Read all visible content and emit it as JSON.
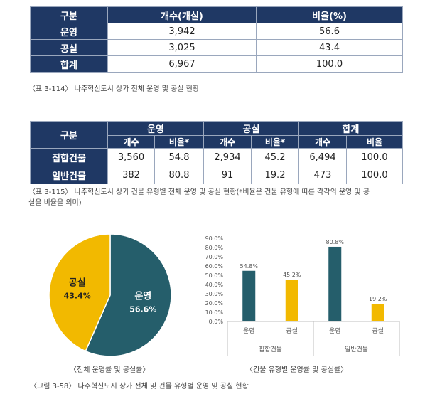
{
  "table1": {
    "headers": [
      "구분",
      "개수(개실)",
      "비율(%)"
    ],
    "rows": [
      {
        "label": "운영",
        "count": "3,942",
        "ratio": "56.6"
      },
      {
        "label": "공실",
        "count": "3,025",
        "ratio": "43.4"
      },
      {
        "label": "합계",
        "count": "6,967",
        "ratio": "100.0"
      }
    ],
    "caption": "〈표 3-114〉 나주혁신도시 상가 전체 운영 및 공실 현황"
  },
  "table2": {
    "corner": "구분",
    "groups": [
      "운영",
      "공실",
      "합계"
    ],
    "subheaders": [
      "개수",
      "비율*",
      "개수",
      "비율*",
      "개수",
      "비율"
    ],
    "rows": [
      {
        "label": "집합건물",
        "cells": [
          "3,560",
          "54.8",
          "2,934",
          "45.2",
          "6,494",
          "100.0"
        ]
      },
      {
        "label": "일반건물",
        "cells": [
          "382",
          "80.8",
          "91",
          "19.2",
          "473",
          "100.0"
        ]
      }
    ],
    "caption_line1": "〈표 3-115〉 나주혁신도시 상가 건물 유형별 전체 운영 및 공실 현황(*비율은 건물 유형에 따른 각각의 운영 및 공",
    "caption_line2": "실을 비율을 의미)"
  },
  "pie": {
    "caption": "〈전체 운영률 및 공실률〉"
  },
  "bar": {
    "caption": "〈건물 유형별 운영률 및 공실률〉"
  },
  "figure_caption": "〈그림 3-58〉 나주혁신도시 상가 전체 및 건물 유형별 운영 및 공실 현황",
  "colors": {
    "operating": "#255e6b",
    "vacant": "#f2b900",
    "header": "#1f3864"
  },
  "chart_data": [
    {
      "type": "pie",
      "categories": [
        "운영",
        "공실"
      ],
      "values": [
        56.6,
        43.4
      ],
      "labels": [
        "56.6%",
        "43.4%"
      ]
    },
    {
      "type": "bar",
      "groups": [
        "집합건물",
        "일반건물"
      ],
      "categories": [
        "운영",
        "공실",
        "운영",
        "공실"
      ],
      "values": [
        54.8,
        45.2,
        80.8,
        19.2
      ],
      "labels": [
        "54.8%",
        "45.2%",
        "80.8%",
        "19.2%"
      ],
      "ylim": [
        0,
        90
      ],
      "yticks": [
        "0.0%",
        "10.0%",
        "20.0%",
        "30.0%",
        "40.0%",
        "50.0%",
        "60.0%",
        "70.0%",
        "80.0%",
        "90.0%"
      ],
      "grid": false
    }
  ]
}
